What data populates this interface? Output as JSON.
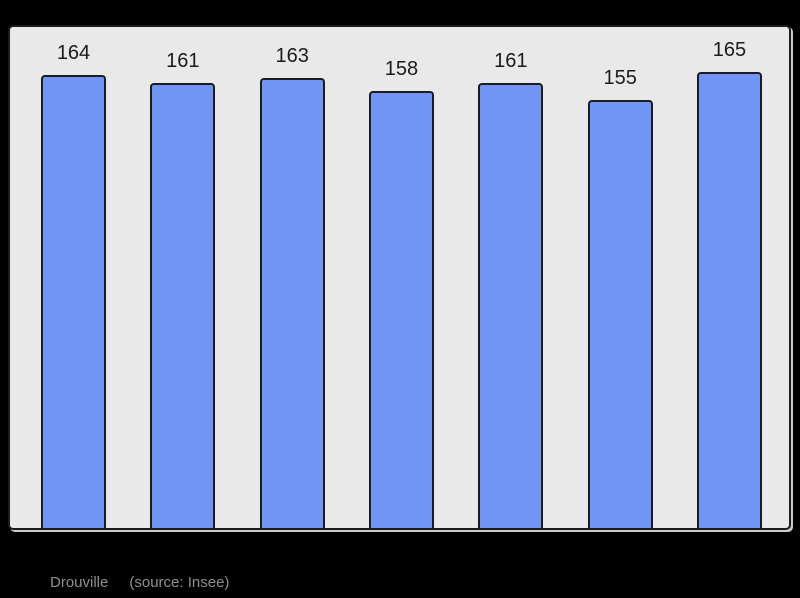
{
  "chart_data": {
    "type": "bar",
    "title": "",
    "values": [
      164,
      161,
      163,
      158,
      161,
      155,
      165
    ],
    "data_labels": [
      "164",
      "161",
      "163",
      "158",
      "161",
      "155",
      "165"
    ],
    "ylim": [
      0,
      165
    ],
    "grid": false,
    "legend": null,
    "axis_tick_labels_visible": false,
    "footer": {
      "place": "Drouville",
      "source": "(source: Insee)"
    },
    "colors": {
      "page_bg": "#000000",
      "panel_bg": "#e9e9e9",
      "panel_border": "#1c1c1c",
      "bar_fill": "#7195f5",
      "bar_border": "#1c1c1c",
      "label_text": "#1b1b1b",
      "footer_text": "#8f8f8f"
    }
  }
}
